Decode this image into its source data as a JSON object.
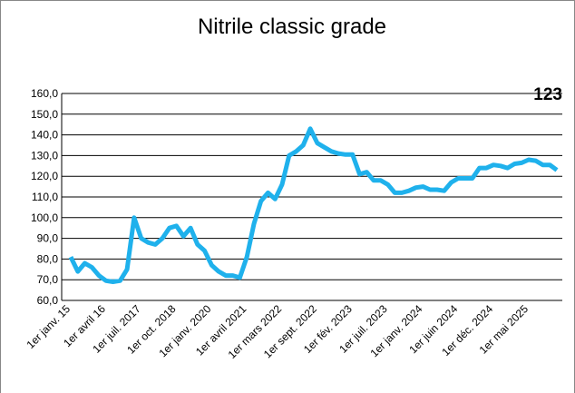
{
  "chart_data": {
    "type": "line",
    "title": "Nitrile classic grade",
    "annotation": "123",
    "categories": [
      "1er janv. 15",
      null,
      null,
      null,
      null,
      "1er avril 16",
      null,
      null,
      null,
      null,
      "1er juil. 2017",
      null,
      null,
      null,
      null,
      "1er oct. 2018",
      null,
      null,
      null,
      null,
      "1er janv. 2020",
      null,
      null,
      null,
      null,
      "1er avril 2021",
      null,
      null,
      null,
      null,
      "1er mars 2022",
      null,
      null,
      null,
      null,
      "1er sept. 2022",
      null,
      null,
      null,
      null,
      "1er fév. 2023",
      null,
      null,
      null,
      null,
      "1er juil. 2023",
      null,
      null,
      null,
      null,
      "1er janv. 2024",
      null,
      null,
      null,
      null,
      "1er juin 2024",
      null,
      null,
      null,
      null,
      "1er déc. 2024",
      null,
      null,
      null,
      null,
      "1er mai 2025",
      null,
      null,
      null,
      null
    ],
    "series": [
      {
        "name": "Nitrile classic grade",
        "color": "#1fb1ec",
        "values": [
          81,
          74,
          78,
          76,
          72,
          69.5,
          69,
          69.5,
          75,
          100,
          90,
          88,
          87,
          90,
          95,
          96,
          91,
          95,
          87,
          84,
          77,
          74,
          72,
          72,
          71,
          81,
          97,
          108,
          112,
          109,
          116,
          130,
          132,
          135,
          143,
          136,
          134,
          132,
          131,
          130.5,
          130.5,
          121,
          122,
          118,
          118,
          116,
          112,
          112,
          113,
          114.5,
          115,
          113.5,
          113.5,
          113,
          117,
          119,
          119,
          119,
          124,
          124,
          125.5,
          125,
          124,
          126,
          126.5,
          128,
          127.5,
          125.5,
          125.5,
          123
        ]
      }
    ],
    "ylim": [
      60,
      160
    ],
    "yticks": [
      {
        "value": 60,
        "label": "60,0"
      },
      {
        "value": 70,
        "label": "70,0"
      },
      {
        "value": 80,
        "label": "80,0"
      },
      {
        "value": 90,
        "label": "90,0"
      },
      {
        "value": 100,
        "label": "100,0"
      },
      {
        "value": 110,
        "label": "110,0"
      },
      {
        "value": 120,
        "label": "120,0"
      },
      {
        "value": 130,
        "label": "130,0"
      },
      {
        "value": 140,
        "label": "140,0"
      },
      {
        "value": 150,
        "label": "150,0"
      },
      {
        "value": 160,
        "label": "160,0"
      }
    ],
    "grid": true
  }
}
